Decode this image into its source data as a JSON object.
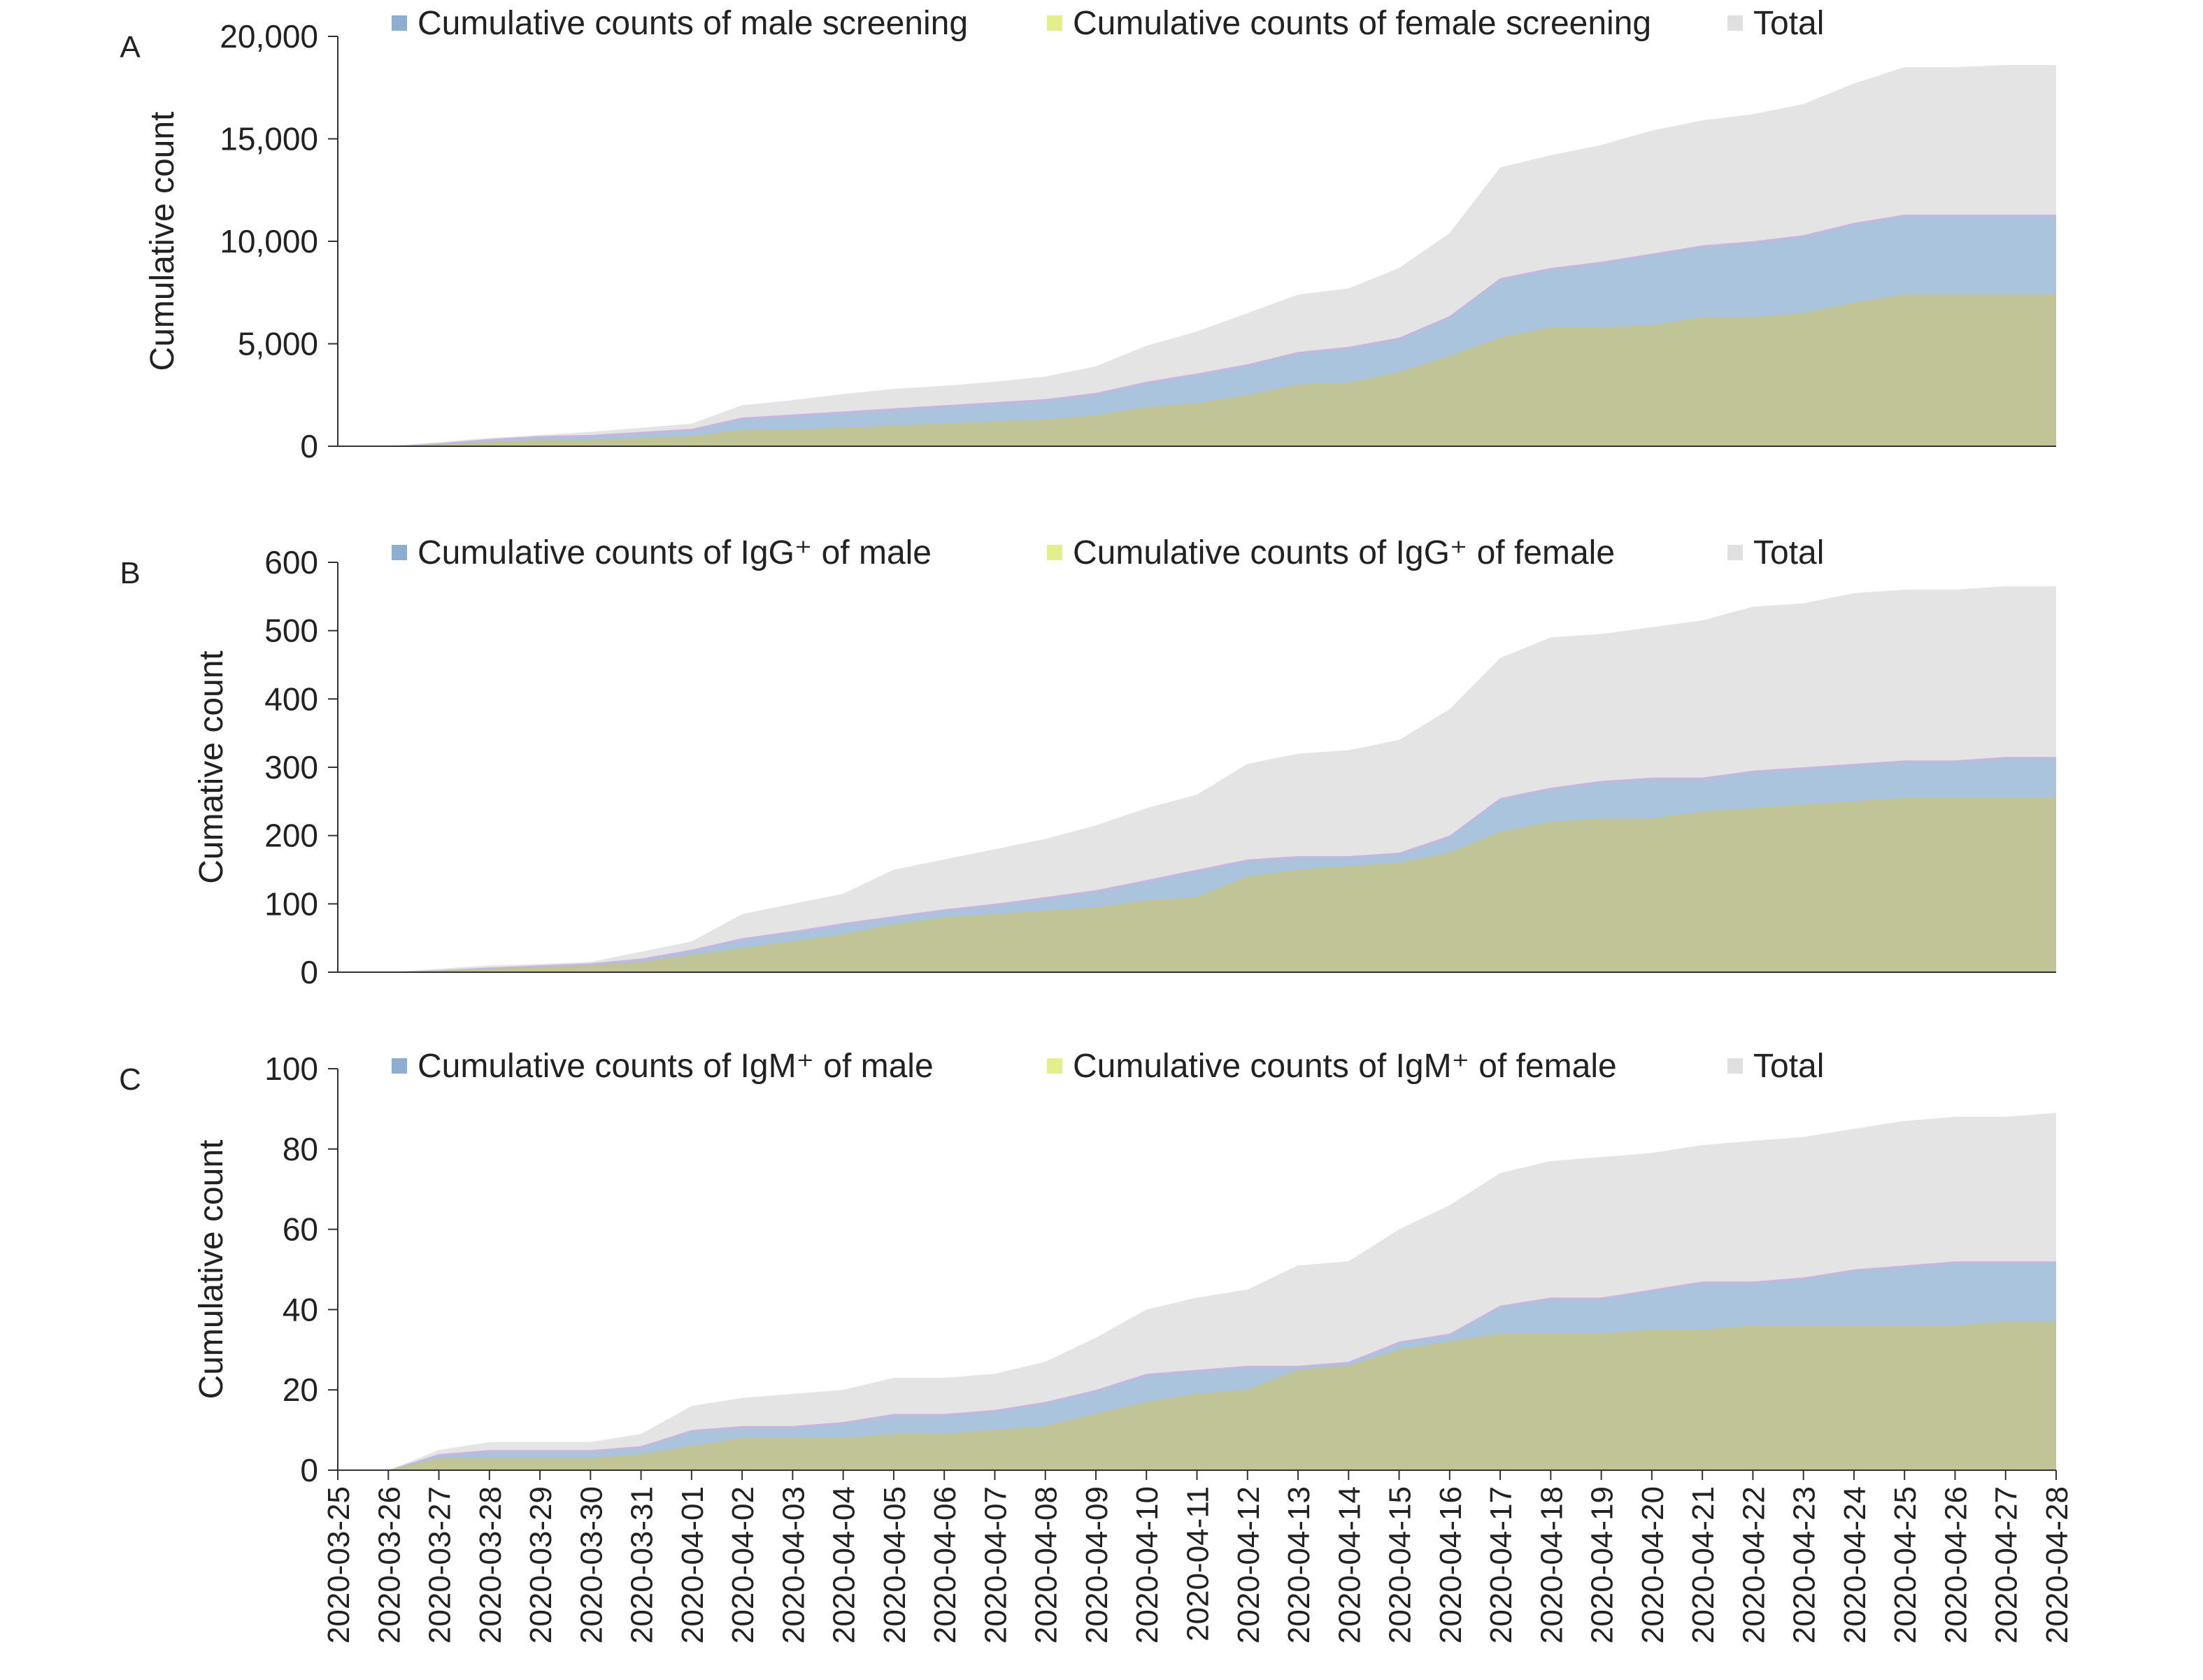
{
  "x_dates": [
    "2020-03-25",
    "2020-03-26",
    "2020-03-27",
    "2020-03-28",
    "2020-03-29",
    "2020-03-30",
    "2020-03-31",
    "2020-04-01",
    "2020-04-02",
    "2020-04-03",
    "2020-04-04",
    "2020-04-05",
    "2020-04-06",
    "2020-04-07",
    "2020-04-08",
    "2020-04-09",
    "2020-04-10",
    "2020-04-11",
    "2020-04-12",
    "2020-04-13",
    "2020-04-14",
    "2020-04-15",
    "2020-04-16",
    "2020-04-17",
    "2020-04-18",
    "2020-04-19",
    "2020-04-20",
    "2020-04-21",
    "2020-04-22",
    "2020-04-23",
    "2020-04-24",
    "2020-04-25",
    "2020-04-26",
    "2020-04-27",
    "2020-04-28"
  ],
  "colors": {
    "male": "#a9c4dc",
    "female": "#c0c497",
    "total": "#e4e4e4",
    "overlap": "#c4b6dc",
    "axis": "#333333",
    "legend_male": "#8eaed0",
    "legend_female": "#e2ef8a",
    "legend_total": "#e0e0e0"
  },
  "chart_data": [
    {
      "panel": "A",
      "type": "area",
      "ylabel": "Cumulative count",
      "ylim": [
        0,
        20000
      ],
      "yticks": [
        "0",
        "5,000",
        "10,000",
        "15,000",
        "20,000"
      ],
      "legend": [
        "Cumulative counts of male screening",
        "Cumulative counts of female screening",
        "Total"
      ],
      "series": [
        {
          "name": "Cumulative counts of male screening",
          "values": [
            0,
            0,
            50,
            150,
            200,
            250,
            300,
            350,
            600,
            750,
            800,
            850,
            900,
            950,
            1000,
            1100,
            1250,
            1450,
            1500,
            1600,
            1750,
            1700,
            1950,
            2900,
            2900,
            3200,
            3500,
            3500,
            3700,
            3800,
            3900,
            3900,
            3900,
            3900,
            3900
          ]
        },
        {
          "name": "Cumulative counts of female screening",
          "values": [
            0,
            0,
            100,
            200,
            300,
            300,
            400,
            500,
            800,
            800,
            900,
            1000,
            1100,
            1200,
            1300,
            1500,
            1900,
            2100,
            2500,
            3000,
            3100,
            3600,
            4400,
            5300,
            5800,
            5800,
            5900,
            6300,
            6300,
            6500,
            7000,
            7400,
            7400,
            7400,
            7400
          ]
        },
        {
          "name": "Total",
          "values": [
            0,
            0,
            150,
            350,
            500,
            550,
            700,
            850,
            1400,
            1550,
            1700,
            1850,
            2000,
            2150,
            2300,
            2600,
            3150,
            3550,
            4000,
            4600,
            4850,
            5300,
            6350,
            8200,
            8700,
            9000,
            9400,
            9800,
            10000,
            10300,
            10900,
            11300,
            11300,
            11300,
            11300
          ]
        }
      ],
      "total_band": [
        0,
        0,
        200,
        400,
        550,
        700,
        900,
        1100,
        2000,
        2250,
        2550,
        2800,
        2950,
        3150,
        3400,
        3900,
        4900,
        5600,
        6500,
        7400,
        7700,
        8700,
        10400,
        13600,
        14200,
        14700,
        15400,
        15900,
        16200,
        16700,
        17700,
        18500,
        18500,
        18600,
        18600
      ]
    },
    {
      "panel": "B",
      "type": "area",
      "ylabel": "Cumative count",
      "ylim": [
        0,
        600
      ],
      "yticks": [
        "0",
        "100",
        "200",
        "300",
        "400",
        "500",
        "600"
      ],
      "legend": [
        "Cumulative counts of IgG⁺ of male",
        "Cumulative counts of IgG⁺ of female",
        "Total"
      ],
      "series": [
        {
          "name": "Cumulative counts of IgG⁺ of male",
          "values": [
            0,
            0,
            1,
            2,
            3,
            3,
            5,
            8,
            15,
            15,
            17,
            12,
            12,
            15,
            20,
            25,
            30,
            40,
            25,
            20,
            15,
            15,
            25,
            50,
            50,
            55,
            60,
            50,
            55,
            55,
            55,
            55,
            55,
            60,
            60
          ]
        },
        {
          "name": "Cumulative counts of IgG⁺ of female",
          "values": [
            0,
            0,
            2,
            5,
            7,
            10,
            15,
            25,
            35,
            45,
            55,
            70,
            80,
            85,
            90,
            95,
            105,
            110,
            140,
            150,
            155,
            160,
            175,
            205,
            220,
            225,
            225,
            235,
            240,
            245,
            250,
            255,
            255,
            255,
            255
          ]
        },
        {
          "name": "Total",
          "values": [
            0,
            0,
            3,
            7,
            10,
            13,
            20,
            33,
            50,
            60,
            72,
            82,
            92,
            100,
            110,
            120,
            135,
            150,
            165,
            170,
            170,
            175,
            200,
            255,
            270,
            280,
            285,
            285,
            295,
            300,
            305,
            310,
            310,
            315,
            315
          ]
        }
      ],
      "total_band": [
        0,
        0,
        5,
        10,
        12,
        15,
        30,
        45,
        85,
        100,
        115,
        150,
        165,
        180,
        195,
        215,
        240,
        260,
        305,
        320,
        325,
        340,
        385,
        460,
        490,
        495,
        505,
        515,
        535,
        540,
        555,
        560,
        560,
        565,
        565
      ]
    },
    {
      "panel": "C",
      "type": "area",
      "ylabel": "Cumulative count",
      "ylim": [
        0,
        100
      ],
      "yticks": [
        "0",
        "20",
        "40",
        "60",
        "80",
        "100"
      ],
      "legend": [
        "Cumulative counts of IgM⁺ of male",
        "Cumulative counts of IgM⁺ of female",
        "Total"
      ],
      "series": [
        {
          "name": "Cumulative counts of IgM⁺ of male",
          "values": [
            0,
            0,
            1,
            2,
            2,
            2,
            2,
            4,
            3,
            3,
            4,
            5,
            5,
            5,
            6,
            6,
            7,
            6,
            6,
            1,
            1,
            2,
            2,
            7,
            9,
            9,
            10,
            12,
            11,
            12,
            14,
            15,
            16,
            15,
            15
          ]
        },
        {
          "name": "Cumulative counts of IgM⁺ of female",
          "values": [
            0,
            0,
            3,
            3,
            3,
            3,
            4,
            6,
            8,
            8,
            8,
            9,
            9,
            10,
            11,
            14,
            17,
            19,
            20,
            25,
            26,
            30,
            32,
            34,
            34,
            34,
            35,
            35,
            36,
            36,
            36,
            36,
            36,
            37,
            37
          ]
        },
        {
          "name": "Total",
          "values": [
            0,
            0,
            4,
            5,
            5,
            5,
            6,
            10,
            11,
            11,
            12,
            14,
            14,
            15,
            17,
            20,
            24,
            25,
            26,
            26,
            27,
            32,
            34,
            41,
            43,
            43,
            45,
            47,
            47,
            48,
            50,
            51,
            52,
            52,
            52
          ]
        }
      ],
      "total_band": [
        0,
        0,
        5,
        7,
        7,
        7,
        9,
        16,
        18,
        19,
        20,
        23,
        23,
        24,
        27,
        33,
        40,
        43,
        45,
        51,
        52,
        60,
        66,
        74,
        77,
        78,
        79,
        81,
        82,
        83,
        85,
        87,
        88,
        88,
        89
      ]
    }
  ],
  "panel_labels": [
    "A",
    "B",
    "C"
  ]
}
